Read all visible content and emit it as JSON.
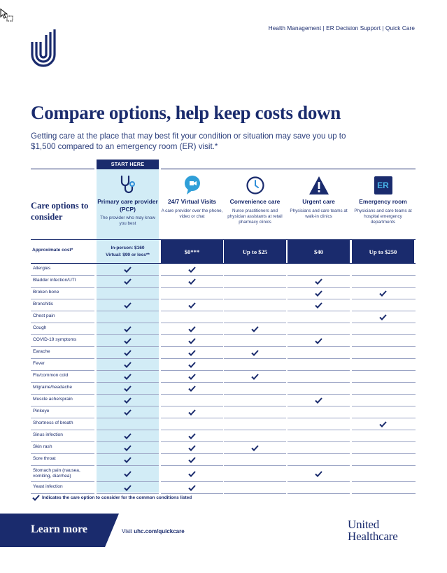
{
  "header": {
    "nav_text": "Health Management | ER Decision Support | Quick Care"
  },
  "title": "Compare options, help keep costs down",
  "intro": "Getting care at the place that may best fit your condition or situation may save you up to $1,500 compared to an emergency room (ER) visit.*",
  "table": {
    "start_here": "START HERE",
    "care_options_label": "Care options to consider",
    "approx_cost_label": "Approximate cost*",
    "columns": [
      {
        "name": "Primary care provider (PCP)",
        "desc": "The provider who may know you best",
        "icon": "stethoscope-icon",
        "cost_line1": "In-person: $160",
        "cost_line2": "Virtual: $99 or less**"
      },
      {
        "name": "24/7 Virtual Visits",
        "desc": "A care provider over the phone, video or chat",
        "icon": "video-chat-icon",
        "cost": "$0***"
      },
      {
        "name": "Convenience care",
        "desc": "Nurse practitioners and physician assistants at retail pharmacy clinics",
        "icon": "clock-icon",
        "cost": "Up to $25"
      },
      {
        "name": "Urgent care",
        "desc": "Physicians and care teams at walk-in clinics",
        "icon": "warning-icon",
        "cost": "$40"
      },
      {
        "name": "Emergency room",
        "desc": "Physicians and care teams at hospital emergency departments",
        "icon": "er-icon",
        "icon_text": "ER",
        "cost": "Up to $250"
      }
    ],
    "rows": [
      {
        "condition": "Allergies",
        "checks": [
          1,
          1,
          0,
          0,
          0
        ]
      },
      {
        "condition": "Bladder infection/UTI",
        "checks": [
          1,
          1,
          0,
          1,
          0
        ]
      },
      {
        "condition": "Broken bone",
        "checks": [
          0,
          0,
          0,
          1,
          1
        ]
      },
      {
        "condition": "Bronchitis",
        "checks": [
          1,
          1,
          0,
          1,
          0
        ]
      },
      {
        "condition": "Chest pain",
        "checks": [
          0,
          0,
          0,
          0,
          1
        ]
      },
      {
        "condition": "Cough",
        "checks": [
          1,
          1,
          1,
          0,
          0
        ]
      },
      {
        "condition": "COVID-19 symptoms",
        "checks": [
          1,
          1,
          0,
          1,
          0
        ]
      },
      {
        "condition": "Earache",
        "checks": [
          1,
          1,
          1,
          0,
          0
        ]
      },
      {
        "condition": "Fever",
        "checks": [
          1,
          1,
          0,
          0,
          0
        ]
      },
      {
        "condition": "Flu/common cold",
        "checks": [
          1,
          1,
          1,
          0,
          0
        ]
      },
      {
        "condition": "Migraine/headache",
        "checks": [
          1,
          1,
          0,
          0,
          0
        ]
      },
      {
        "condition": "Muscle ache/sprain",
        "checks": [
          1,
          0,
          0,
          1,
          0
        ]
      },
      {
        "condition": "Pinkeye",
        "checks": [
          1,
          1,
          0,
          0,
          0
        ]
      },
      {
        "condition": "Shortness of breath",
        "checks": [
          0,
          0,
          0,
          0,
          1
        ]
      },
      {
        "condition": "Sinus infection",
        "checks": [
          1,
          1,
          0,
          0,
          0
        ]
      },
      {
        "condition": "Skin rash",
        "checks": [
          1,
          1,
          1,
          0,
          0
        ]
      },
      {
        "condition": "Sore throat",
        "checks": [
          1,
          1,
          0,
          0,
          0
        ]
      },
      {
        "condition": "Stomach pain (nausea, vomiting, diarrhea)",
        "checks": [
          1,
          1,
          0,
          1,
          0
        ]
      },
      {
        "condition": "Yeast infection",
        "checks": [
          1,
          1,
          0,
          0,
          0
        ]
      }
    ],
    "legend": "Indicates the care option to consider for the common conditions listed"
  },
  "footer": {
    "learn_more": "Learn more",
    "visit_prefix": "Visit ",
    "visit_url": "uhc.com/quickcare",
    "brand_line1": "United",
    "brand_line2": "Healthcare"
  },
  "colors": {
    "navy": "#1a2b6d",
    "light_blue": "#d2ecf6",
    "accent_blue": "#2f8fd8"
  }
}
